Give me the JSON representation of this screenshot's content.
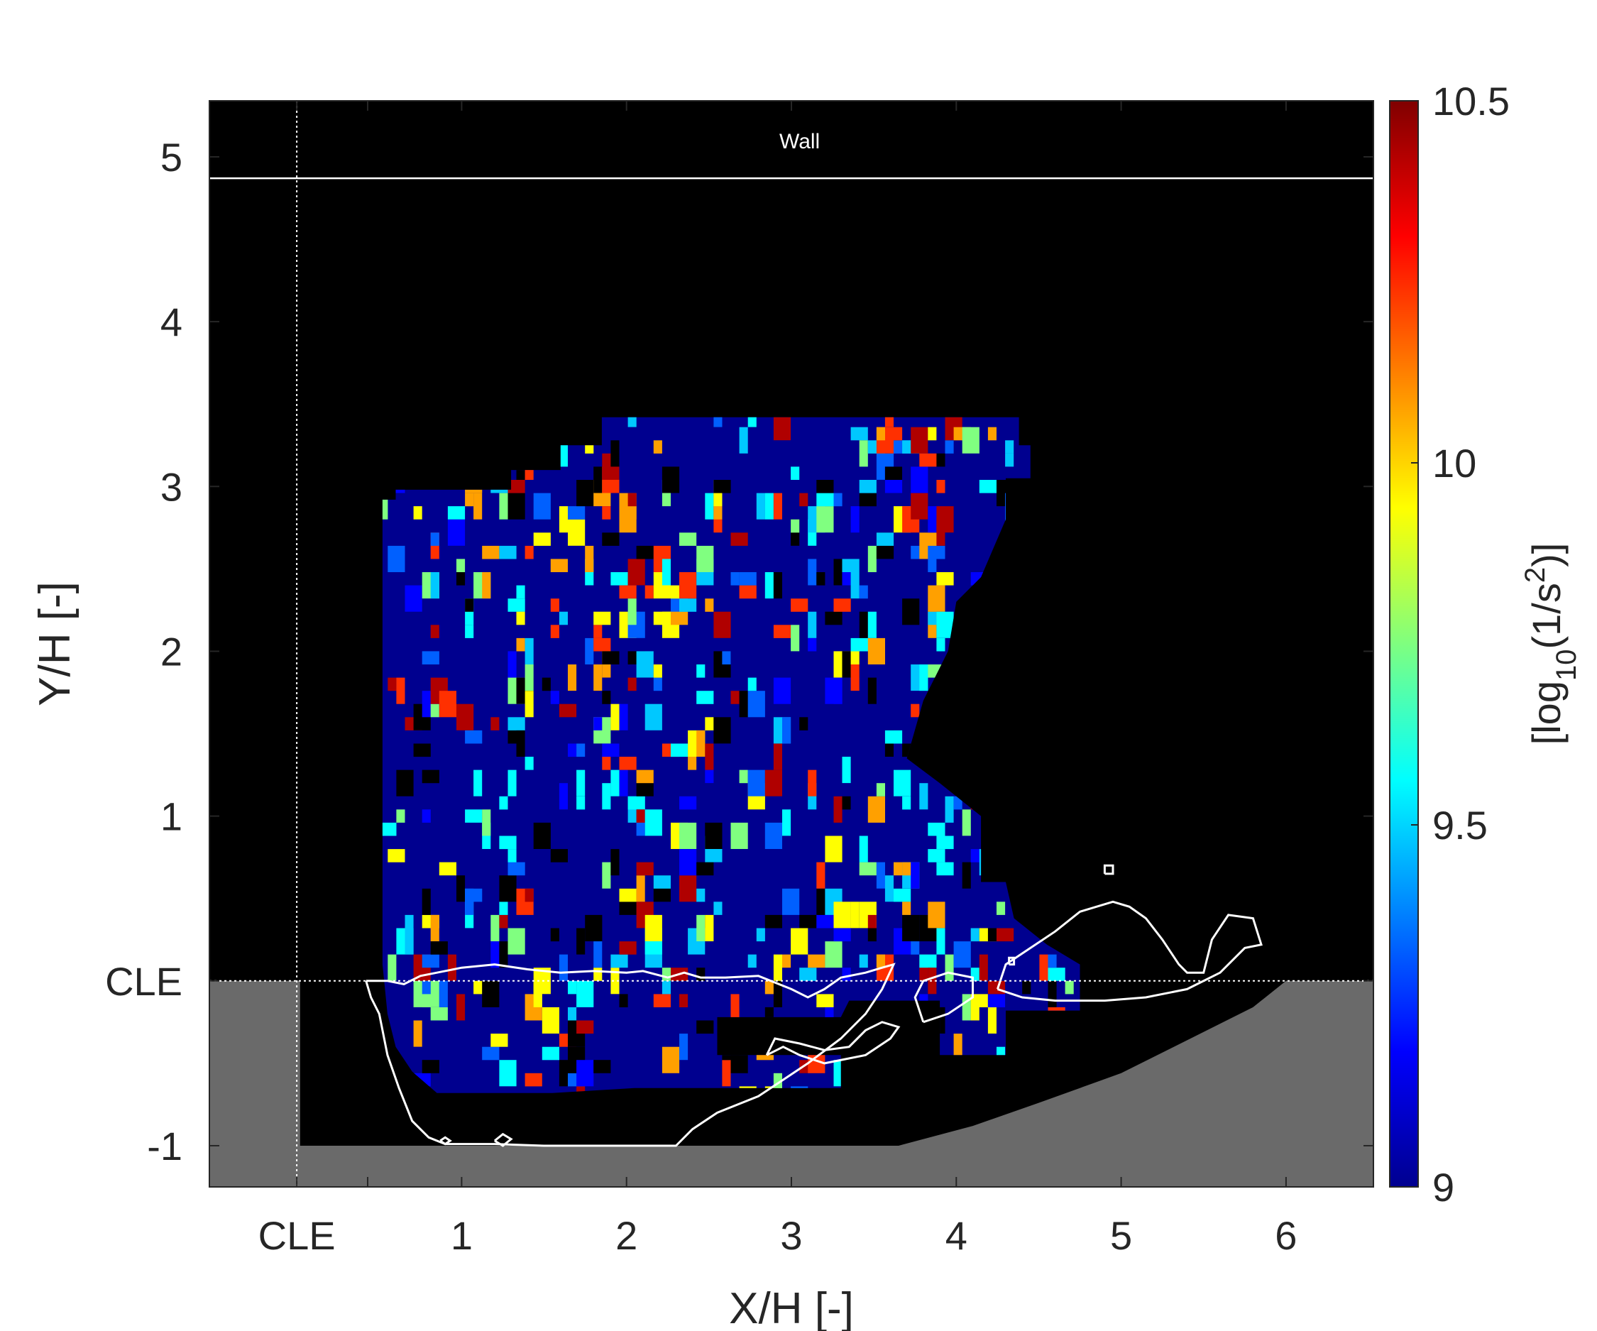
{
  "chart_data": {
    "type": "heatmap",
    "xlabel": "X/H [-]",
    "ylabel": "Y/H [-]",
    "x_ticks": [
      {
        "value": 0,
        "label": "CLE"
      },
      {
        "value": 1,
        "label": "1"
      },
      {
        "value": 2,
        "label": "2"
      },
      {
        "value": 3,
        "label": "3"
      },
      {
        "value": 4,
        "label": "4"
      },
      {
        "value": 5,
        "label": "5"
      },
      {
        "value": 6,
        "label": "6"
      }
    ],
    "y_ticks": [
      {
        "value": -1,
        "label": "-1"
      },
      {
        "value": 0,
        "label": "CLE"
      },
      {
        "value": 1,
        "label": "1"
      },
      {
        "value": 2,
        "label": "2"
      },
      {
        "value": 3,
        "label": "3"
      },
      {
        "value": 4,
        "label": "4"
      },
      {
        "value": 5,
        "label": "5"
      }
    ],
    "xlim": [
      -0.53,
      6.53
    ],
    "ylim": [
      -1.25,
      5.34
    ],
    "background_color": "#000000",
    "field_base_color": "#00008f",
    "solid_region_color": "#6a6a6a",
    "colormap": "jet",
    "colorbar": {
      "label": "[log10(1/s2)]",
      "label_parts": {
        "prefix": "[log",
        "sub1": "10",
        "mid": "(1/s",
        "sup": "2",
        "suffix": ")]"
      },
      "min": 9,
      "max": 10.5,
      "ticks": [
        {
          "value": 9,
          "label": "9"
        },
        {
          "value": 9.5,
          "label": "9.5"
        },
        {
          "value": 10,
          "label": "10"
        },
        {
          "value": 10.5,
          "label": "10.5"
        }
      ]
    },
    "wall": {
      "y": 4.87,
      "label": "Wall"
    },
    "reference_lines": {
      "x": 0,
      "y": 0,
      "style": "dotted",
      "color": "#ffffff"
    },
    "field_outline": [
      [
        0.52,
        2.92
      ],
      [
        0.6,
        2.92
      ],
      [
        0.6,
        2.98
      ],
      [
        1.3,
        2.98
      ],
      [
        1.3,
        3.1
      ],
      [
        1.6,
        3.1
      ],
      [
        1.6,
        3.25
      ],
      [
        1.85,
        3.25
      ],
      [
        1.85,
        3.42
      ],
      [
        4.38,
        3.42
      ],
      [
        4.38,
        3.25
      ],
      [
        4.45,
        3.25
      ],
      [
        4.45,
        3.05
      ],
      [
        4.3,
        3.05
      ],
      [
        4.3,
        2.8
      ],
      [
        4.15,
        2.45
      ],
      [
        4.0,
        2.3
      ],
      [
        3.95,
        2.0
      ],
      [
        3.8,
        1.7
      ],
      [
        3.7,
        1.35
      ],
      [
        3.9,
        1.2
      ],
      [
        4.15,
        1.0
      ],
      [
        4.15,
        0.6
      ],
      [
        4.3,
        0.6
      ],
      [
        4.35,
        0.38
      ],
      [
        4.55,
        0.22
      ],
      [
        4.75,
        0.1
      ],
      [
        4.75,
        -0.18
      ],
      [
        4.3,
        -0.18
      ],
      [
        4.3,
        -0.45
      ],
      [
        3.9,
        -0.45
      ],
      [
        3.9,
        -0.12
      ],
      [
        3.35,
        -0.12
      ],
      [
        3.3,
        -0.22
      ],
      [
        2.55,
        -0.22
      ],
      [
        2.55,
        -0.45
      ],
      [
        3.3,
        -0.45
      ],
      [
        3.3,
        -0.65
      ],
      [
        2.05,
        -0.65
      ],
      [
        1.55,
        -0.68
      ],
      [
        0.85,
        -0.68
      ],
      [
        0.7,
        -0.55
      ],
      [
        0.6,
        -0.4
      ],
      [
        0.55,
        -0.2
      ],
      [
        0.52,
        0.1
      ],
      [
        0.52,
        2.92
      ]
    ],
    "solid_boundary": [
      [
        -0.53,
        0.0
      ],
      [
        0.02,
        0.0
      ],
      [
        0.02,
        -1.0
      ],
      [
        3.65,
        -1.0
      ],
      [
        4.1,
        -0.88
      ],
      [
        4.5,
        -0.74
      ],
      [
        5.0,
        -0.56
      ],
      [
        5.4,
        -0.36
      ],
      [
        5.8,
        -0.16
      ],
      [
        6.0,
        0.0
      ],
      [
        6.53,
        0.0
      ]
    ],
    "contours": [
      [
        [
          0.42,
          0.0
        ],
        [
          0.55,
          0.0
        ],
        [
          0.65,
          -0.02
        ],
        [
          0.75,
          0.03
        ],
        [
          0.85,
          0.05
        ],
        [
          1.0,
          0.08
        ],
        [
          1.2,
          0.1
        ],
        [
          1.4,
          0.07
        ],
        [
          1.6,
          0.05
        ],
        [
          1.8,
          0.06
        ],
        [
          2.0,
          0.05
        ],
        [
          2.1,
          0.06
        ],
        [
          2.25,
          0.02
        ],
        [
          2.35,
          0.05
        ],
        [
          2.45,
          0.02
        ],
        [
          2.6,
          0.02
        ],
        [
          2.8,
          0.03
        ],
        [
          3.0,
          -0.05
        ],
        [
          3.1,
          -0.1
        ],
        [
          3.2,
          -0.05
        ],
        [
          3.3,
          0.02
        ],
        [
          3.45,
          0.05
        ],
        [
          3.55,
          0.08
        ],
        [
          3.62,
          0.1
        ],
        [
          3.55,
          -0.05
        ],
        [
          3.45,
          -0.2
        ],
        [
          3.3,
          -0.35
        ],
        [
          3.1,
          -0.5
        ],
        [
          2.95,
          -0.6
        ],
        [
          2.8,
          -0.7
        ],
        [
          2.55,
          -0.8
        ],
        [
          2.4,
          -0.9
        ],
        [
          2.3,
          -1.0
        ],
        [
          2.0,
          -1.0
        ],
        [
          1.5,
          -1.0
        ],
        [
          1.2,
          -0.99
        ],
        [
          0.9,
          -0.99
        ],
        [
          0.8,
          -0.95
        ],
        [
          0.7,
          -0.85
        ],
        [
          0.62,
          -0.65
        ],
        [
          0.55,
          -0.45
        ],
        [
          0.5,
          -0.2
        ],
        [
          0.45,
          -0.1
        ],
        [
          0.42,
          0.0
        ]
      ],
      [
        [
          2.85,
          -0.45
        ],
        [
          2.95,
          -0.4
        ],
        [
          3.05,
          -0.45
        ],
        [
          3.2,
          -0.5
        ],
        [
          3.45,
          -0.45
        ],
        [
          3.6,
          -0.35
        ],
        [
          3.65,
          -0.28
        ],
        [
          3.55,
          -0.25
        ],
        [
          3.45,
          -0.3
        ],
        [
          3.35,
          -0.4
        ],
        [
          3.2,
          -0.42
        ],
        [
          3.05,
          -0.38
        ],
        [
          2.9,
          -0.35
        ],
        [
          2.85,
          -0.45
        ]
      ],
      [
        [
          3.8,
          -0.25
        ],
        [
          3.75,
          -0.1
        ],
        [
          3.8,
          0.0
        ],
        [
          3.95,
          0.05
        ],
        [
          4.1,
          0.02
        ],
        [
          4.1,
          -0.1
        ],
        [
          3.95,
          -0.2
        ],
        [
          3.8,
          -0.25
        ]
      ],
      [
        [
          4.25,
          -0.05
        ],
        [
          4.3,
          0.1
        ],
        [
          4.45,
          0.2
        ],
        [
          4.6,
          0.3
        ],
        [
          4.75,
          0.42
        ],
        [
          4.95,
          0.48
        ],
        [
          5.05,
          0.45
        ],
        [
          5.15,
          0.38
        ],
        [
          5.25,
          0.25
        ],
        [
          5.35,
          0.1
        ],
        [
          5.4,
          0.05
        ],
        [
          5.5,
          0.05
        ],
        [
          5.55,
          0.25
        ],
        [
          5.65,
          0.4
        ],
        [
          5.8,
          0.38
        ],
        [
          5.85,
          0.22
        ],
        [
          5.75,
          0.2
        ],
        [
          5.6,
          0.05
        ],
        [
          5.4,
          -0.05
        ],
        [
          5.15,
          -0.1
        ],
        [
          4.9,
          -0.12
        ],
        [
          4.6,
          -0.12
        ],
        [
          4.4,
          -0.1
        ],
        [
          4.25,
          -0.05
        ]
      ],
      [
        [
          4.9,
          0.65
        ],
        [
          4.95,
          0.65
        ],
        [
          4.95,
          0.7
        ],
        [
          4.9,
          0.7
        ],
        [
          4.9,
          0.65
        ]
      ],
      [
        [
          4.32,
          0.1
        ],
        [
          4.35,
          0.1
        ],
        [
          4.35,
          0.14
        ],
        [
          4.32,
          0.14
        ],
        [
          4.32,
          0.1
        ]
      ],
      [
        [
          0.87,
          -0.97
        ],
        [
          0.9,
          -0.95
        ],
        [
          0.93,
          -0.97
        ],
        [
          0.9,
          -0.99
        ],
        [
          0.87,
          -0.97
        ]
      ],
      [
        [
          1.2,
          -0.97
        ],
        [
          1.25,
          -0.93
        ],
        [
          1.3,
          -0.96
        ],
        [
          1.25,
          -1.0
        ],
        [
          1.2,
          -0.97
        ]
      ]
    ]
  }
}
